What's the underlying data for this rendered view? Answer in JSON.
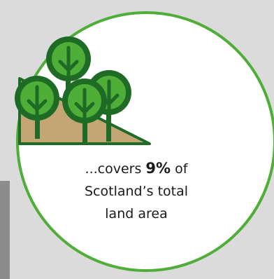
{
  "caption": {
    "prefix": "...covers",
    "percent": "9%",
    "line1_suffix": "of",
    "line2": "Scotland’s total",
    "line3": "land area"
  },
  "colors": {
    "background": "#dbdbdb",
    "circle_fill": "#ffffff",
    "circle_border": "#4fae38",
    "tree_dark": "#1e6b26",
    "tree_light": "#4fae38",
    "hill": "#c4a574",
    "side_strip": "#8c8c8c"
  },
  "illustration": {
    "icon": "forest-hill-icon",
    "tree_count": 4
  },
  "stat": {
    "value": 9,
    "unit": "%"
  }
}
